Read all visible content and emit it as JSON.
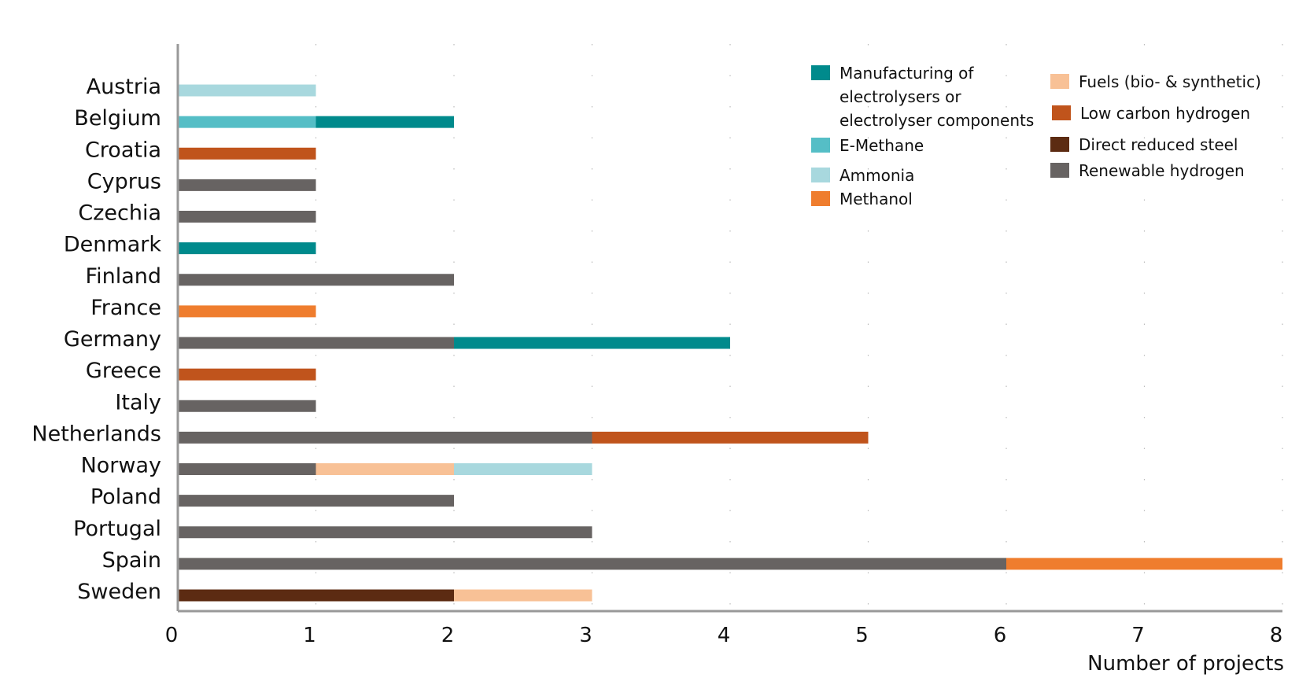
{
  "chart_data": {
    "type": "bar",
    "orientation": "horizontal",
    "stacked": true,
    "title": "",
    "xlabel": "Number of projects",
    "ylabel": "",
    "xlim": [
      0,
      8
    ],
    "xticks": [
      "0",
      "1",
      "2",
      "3",
      "4",
      "5",
      "6",
      "7",
      "8"
    ],
    "grid": "vertical dotted",
    "legend_position": "top-right",
    "categories": [
      "Austria",
      "Belgium",
      "Croatia",
      "Cyprus",
      "Czechia",
      "Denmark",
      "Finland",
      "France",
      "Germany",
      "Greece",
      "Italy",
      "Netherlands",
      "Norway",
      "Poland",
      "Portugal",
      "Spain",
      "Sweden"
    ],
    "series": [
      {
        "name": "Renewable hydrogen",
        "color": "#676362",
        "values": [
          0,
          0,
          0,
          1,
          1,
          0,
          2,
          0,
          2,
          0,
          1,
          3,
          1,
          2,
          3,
          6,
          0
        ]
      },
      {
        "name": "Direct reduced steel",
        "color": "#5c2b12",
        "values": [
          0,
          0,
          0,
          0,
          0,
          0,
          0,
          0,
          0,
          0,
          0,
          0,
          0,
          0,
          0,
          0,
          2
        ]
      },
      {
        "name": "E-Methane",
        "color": "#55bec6",
        "values": [
          0,
          1,
          0,
          0,
          0,
          0,
          0,
          0,
          0,
          0,
          0,
          0,
          0,
          0,
          0,
          0,
          0
        ]
      },
      {
        "name": "Manufacturing of electrolysers or electrolyser components",
        "color": "#008a8c",
        "values": [
          0,
          1,
          0,
          0,
          0,
          1,
          0,
          0,
          2,
          0,
          0,
          0,
          0,
          0,
          0,
          0,
          0
        ]
      },
      {
        "name": "Low carbon hydrogen",
        "color": "#c0541c",
        "values": [
          0,
          0,
          1,
          0,
          0,
          0,
          0,
          0,
          0,
          1,
          0,
          2,
          0,
          0,
          0,
          0,
          0
        ]
      },
      {
        "name": "Methanol",
        "color": "#ef7d2e",
        "values": [
          0,
          0,
          0,
          0,
          0,
          0,
          0,
          1,
          0,
          0,
          0,
          0,
          0,
          0,
          0,
          2,
          0
        ]
      },
      {
        "name": "Fuels (bio- & synthetic)",
        "color": "#f8c196",
        "values": [
          0,
          0,
          0,
          0,
          0,
          0,
          0,
          0,
          0,
          0,
          0,
          0,
          1,
          0,
          0,
          0,
          1
        ]
      },
      {
        "name": "Ammonia",
        "color": "#a8d8de",
        "values": [
          1,
          0,
          0,
          0,
          0,
          0,
          0,
          0,
          0,
          0,
          0,
          0,
          1,
          0,
          0,
          0,
          0
        ]
      }
    ],
    "legend": [
      {
        "label_lines": [
          "Manufacturing of",
          "electrolysers or",
          "electrolyser components"
        ],
        "color": "#008a8c"
      },
      {
        "label_lines": [
          "E-Methane"
        ],
        "color": "#55bec6"
      },
      {
        "label_lines": [
          "Ammonia"
        ],
        "color": "#a8d8de"
      },
      {
        "label_lines": [
          "Methanol"
        ],
        "color": "#ef7d2e"
      },
      {
        "label_lines": [
          "Fuels (bio- & synthetic)"
        ],
        "color": "#f8c196"
      },
      {
        "label_lines": [
          "Low carbon hydrogen"
        ],
        "color": "#c0541c"
      },
      {
        "label_lines": [
          "Direct reduced steel"
        ],
        "color": "#5c2b12"
      },
      {
        "label_lines": [
          "Renewable hydrogen"
        ],
        "color": "#676362"
      }
    ]
  }
}
